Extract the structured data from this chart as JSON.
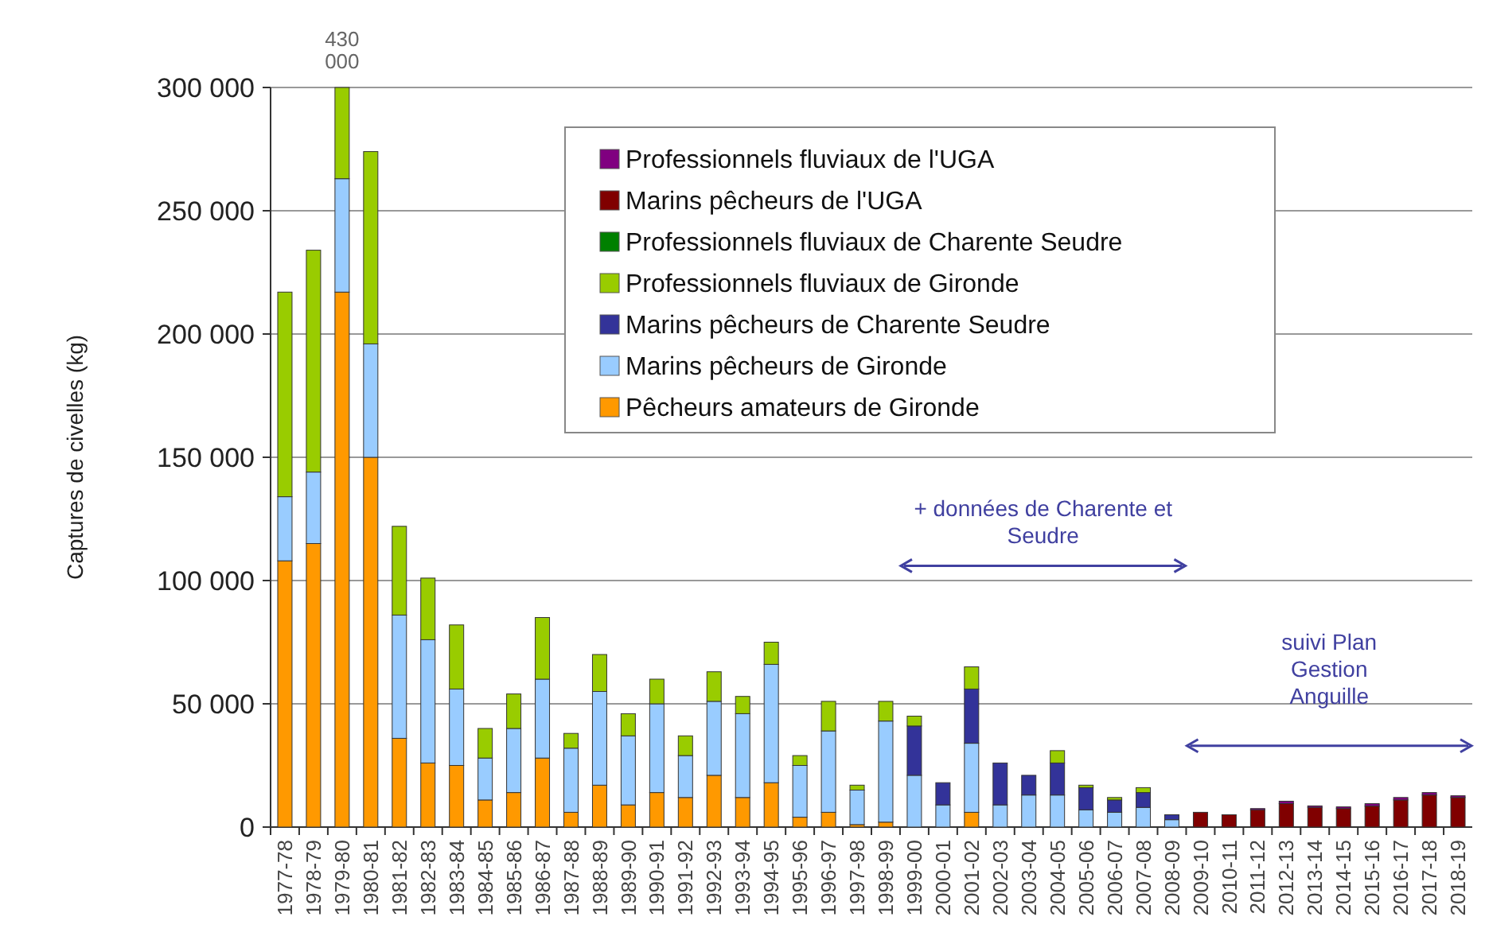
{
  "chart_data": {
    "type": "bar",
    "stacked": true,
    "ylabel": "Captures de civelles (kg)",
    "categories": [
      "1977-78",
      "1978-79",
      "1979-80",
      "1980-81",
      "1981-82",
      "1982-83",
      "1983-84",
      "1984-85",
      "1985-86",
      "1986-87",
      "1987-88",
      "1988-89",
      "1989-90",
      "1990-91",
      "1991-92",
      "1992-93",
      "1993-94",
      "1994-95",
      "1995-96",
      "1996-97",
      "1997-98",
      "1998-99",
      "1999-00",
      "2000-01",
      "2001-02",
      "2002-03",
      "2003-04",
      "2004-05",
      "2005-06",
      "2006-07",
      "2007-08",
      "2008-09",
      "2009-10",
      "2010-11",
      "2011-12",
      "2012-13",
      "2013-14",
      "2014-15",
      "2015-16",
      "2016-17",
      "2017-18",
      "2018-19"
    ],
    "series": [
      {
        "name": "Pêcheurs amateurs de Gironde",
        "color": "#ff9900",
        "values": [
          108000,
          115000,
          217000,
          150000,
          36000,
          26000,
          25000,
          11000,
          14000,
          28000,
          6000,
          17000,
          9000,
          14000,
          12000,
          21000,
          12000,
          18000,
          4000,
          6000,
          1000,
          2000,
          0,
          0,
          6000,
          0,
          0,
          0,
          0,
          0,
          0,
          0,
          0,
          0,
          0,
          0,
          0,
          0,
          0,
          0,
          0,
          0
        ]
      },
      {
        "name": "Marins pêcheurs de Gironde",
        "color": "#99ccff",
        "values": [
          26000,
          29000,
          46000,
          46000,
          50000,
          50000,
          31000,
          17000,
          26000,
          32000,
          26000,
          38000,
          28000,
          36000,
          17000,
          30000,
          34000,
          48000,
          21000,
          33000,
          14000,
          41000,
          21000,
          9000,
          28000,
          9000,
          13000,
          13000,
          7000,
          6000,
          8000,
          3000,
          0,
          0,
          0,
          0,
          0,
          0,
          0,
          0,
          0,
          0
        ]
      },
      {
        "name": "Marins pêcheurs de Charente Seudre",
        "color": "#333399",
        "values": [
          0,
          0,
          0,
          0,
          0,
          0,
          0,
          0,
          0,
          0,
          0,
          0,
          0,
          0,
          0,
          0,
          0,
          0,
          0,
          0,
          0,
          0,
          20000,
          9000,
          22000,
          17000,
          8000,
          13000,
          9000,
          5000,
          6000,
          2000,
          0,
          0,
          0,
          0,
          0,
          0,
          0,
          0,
          0,
          0
        ]
      },
      {
        "name": "Professionnels fluviaux de Gironde",
        "color": "#99cc00",
        "values": [
          83000,
          90000,
          37000,
          78000,
          36000,
          25000,
          26000,
          12000,
          14000,
          25000,
          6000,
          15000,
          9000,
          10000,
          8000,
          12000,
          7000,
          9000,
          4000,
          12000,
          2000,
          8000,
          4000,
          0,
          9000,
          0,
          0,
          5000,
          1000,
          1000,
          2000,
          0,
          0,
          0,
          0,
          0,
          0,
          0,
          0,
          0,
          0,
          0
        ]
      },
      {
        "name": "Professionnels fluviaux de Charente Seudre",
        "color": "#008000",
        "values": [
          0,
          0,
          0,
          0,
          0,
          0,
          0,
          0,
          0,
          0,
          0,
          0,
          0,
          0,
          0,
          0,
          0,
          0,
          0,
          0,
          0,
          0,
          0,
          0,
          0,
          0,
          0,
          0,
          0,
          0,
          0,
          0,
          0,
          0,
          0,
          0,
          0,
          0,
          0,
          0,
          0,
          0
        ]
      },
      {
        "name": "Marins pêcheurs de l'UGA",
        "color": "#800000",
        "values": [
          0,
          0,
          0,
          0,
          0,
          0,
          0,
          0,
          0,
          0,
          0,
          0,
          0,
          0,
          0,
          0,
          0,
          0,
          0,
          0,
          0,
          0,
          0,
          0,
          0,
          0,
          0,
          0,
          0,
          0,
          0,
          0,
          6000,
          5000,
          7000,
          9500,
          8000,
          7500,
          8500,
          11000,
          13000,
          12000
        ]
      },
      {
        "name": "Professionnels fluviaux de l'UGA",
        "color": "#800080",
        "values": [
          0,
          0,
          0,
          0,
          0,
          0,
          0,
          0,
          0,
          0,
          0,
          0,
          0,
          0,
          0,
          0,
          0,
          0,
          0,
          0,
          0,
          0,
          0,
          0,
          0,
          0,
          0,
          0,
          0,
          0,
          0,
          0,
          0,
          0,
          500,
          1000,
          600,
          700,
          1000,
          1000,
          1000,
          700
        ]
      }
    ],
    "ylim": [
      0,
      300000
    ],
    "yticks": [
      {
        "value": 0,
        "label": "0"
      },
      {
        "value": 50000,
        "label": "50 000"
      },
      {
        "value": 100000,
        "label": "100 000"
      },
      {
        "value": 150000,
        "label": "150 000"
      },
      {
        "value": 200000,
        "label": "200 000"
      },
      {
        "value": 250000,
        "label": "250 000"
      },
      {
        "value": 300000,
        "label": "300 000"
      }
    ],
    "grid": "y",
    "legend": "top right",
    "annotations": [
      {
        "text": "430 000",
        "x": "1979-80",
        "y": 300000
      },
      "+ données de Charente et Seudre",
      "suivi Plan Gestion Anguille"
    ]
  }
}
